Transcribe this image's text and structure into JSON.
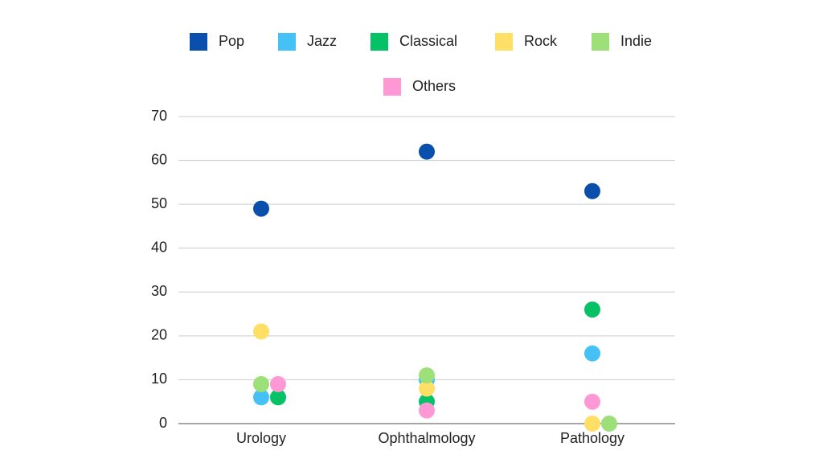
{
  "chart_data": {
    "type": "scatter",
    "categories": [
      "Urology",
      "Ophthalmology",
      "Pathology"
    ],
    "series": [
      {
        "name": "Pop",
        "color": "#0b4fad",
        "values": [
          49,
          62,
          53
        ]
      },
      {
        "name": "Jazz",
        "color": "#46c1f5",
        "values": [
          6,
          10,
          16
        ]
      },
      {
        "name": "Classical",
        "color": "#05c266",
        "values": [
          6,
          5,
          26
        ]
      },
      {
        "name": "Rock",
        "color": "#ffdf66",
        "values": [
          21,
          8,
          0
        ]
      },
      {
        "name": "Indie",
        "color": "#9de07a",
        "values": [
          9,
          11,
          0
        ]
      },
      {
        "name": "Others",
        "color": "#ff99d6",
        "values": [
          9,
          3,
          5
        ]
      }
    ],
    "ylim": [
      0,
      70
    ],
    "yticks": [
      0,
      10,
      20,
      30,
      40,
      50,
      60,
      70
    ],
    "grid": true
  }
}
